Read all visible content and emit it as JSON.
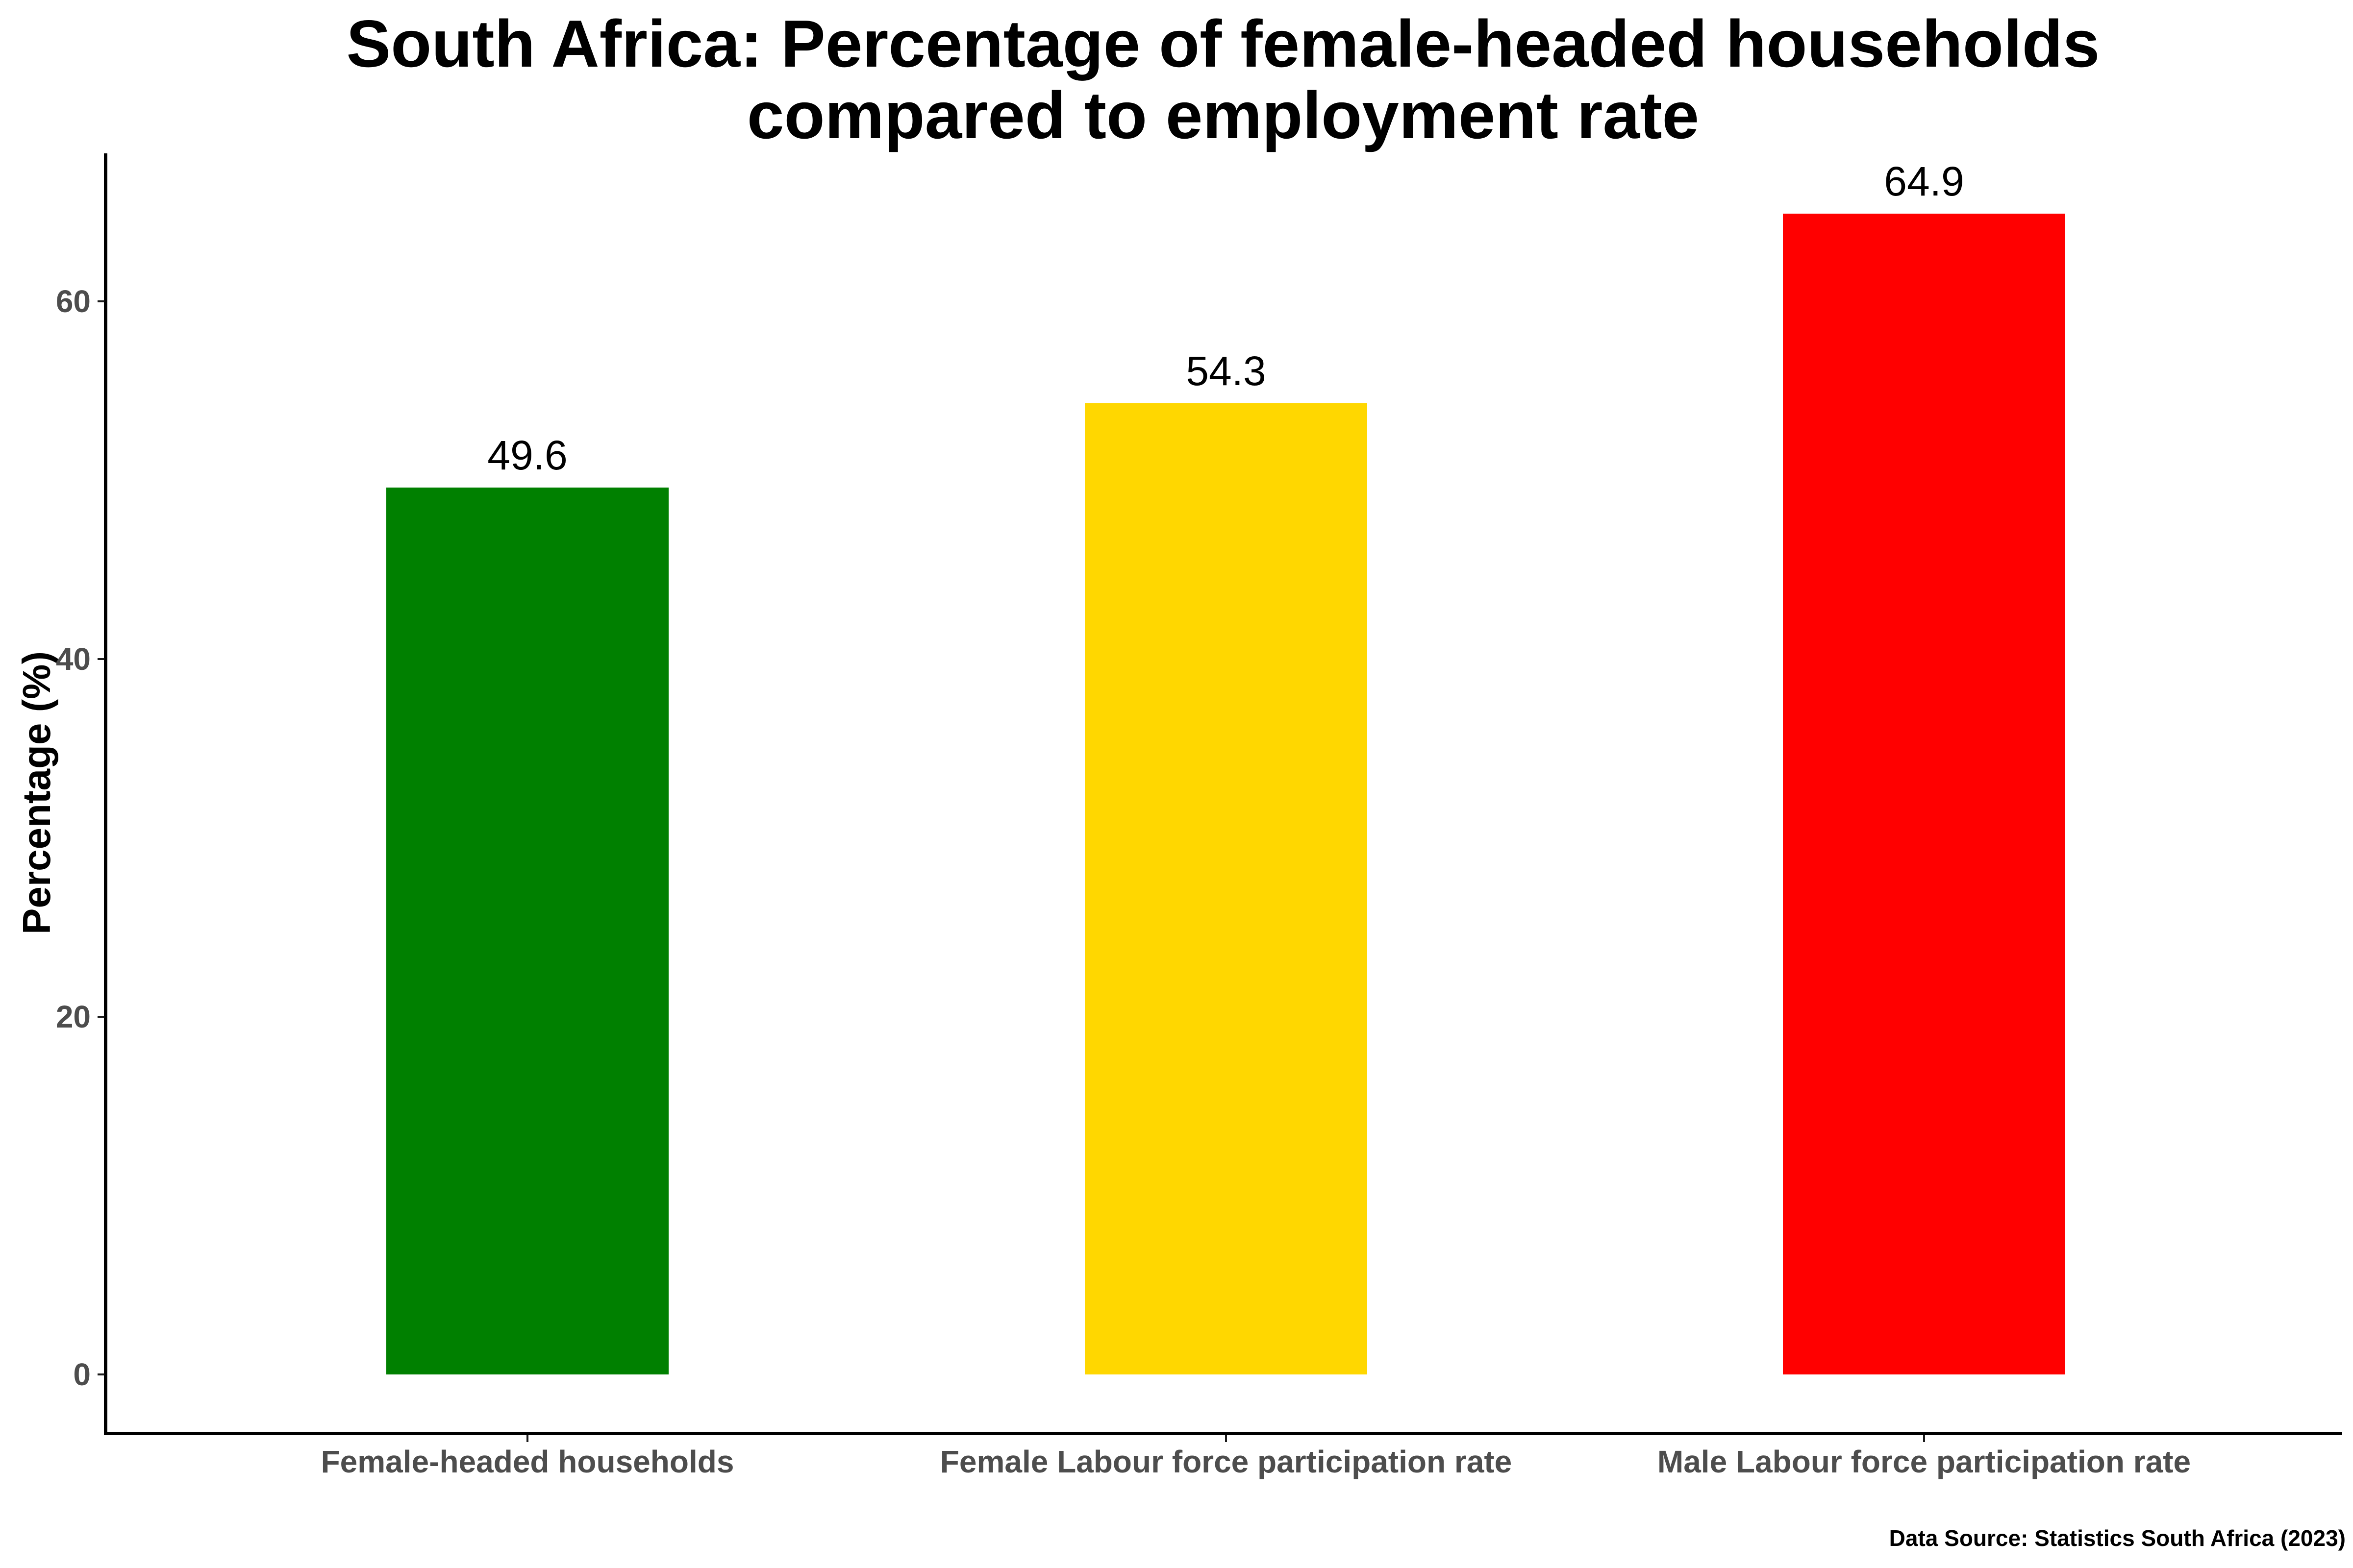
{
  "chart_data": {
    "type": "bar",
    "title": "South Africa: Percentage of female-headed households compared to employment rate",
    "title_lines": [
      "South Africa: Percentage of female-headed households",
      "compared to employment rate"
    ],
    "categories": [
      "Female-headed households",
      "Female Labour force participation rate",
      "Male Labour force participation rate"
    ],
    "values": [
      49.6,
      54.3,
      64.9
    ],
    "value_labels": [
      "49.6",
      "54.3",
      "64.9"
    ],
    "bar_colors": [
      "#008000",
      "#FFD700",
      "#FF0000"
    ],
    "xlabel": "",
    "ylabel": "Percentage (%)",
    "ylim": [
      0,
      68
    ],
    "yticks": [
      0,
      20,
      40,
      60
    ],
    "ytick_labels": [
      "0",
      "20",
      "40",
      "60"
    ],
    "grid": "off",
    "legend": "none",
    "axis_text_color": "#4D4D4D",
    "axis_line_color": "#000000",
    "caption": "Data Source: Statistics South Africa (2023)"
  }
}
